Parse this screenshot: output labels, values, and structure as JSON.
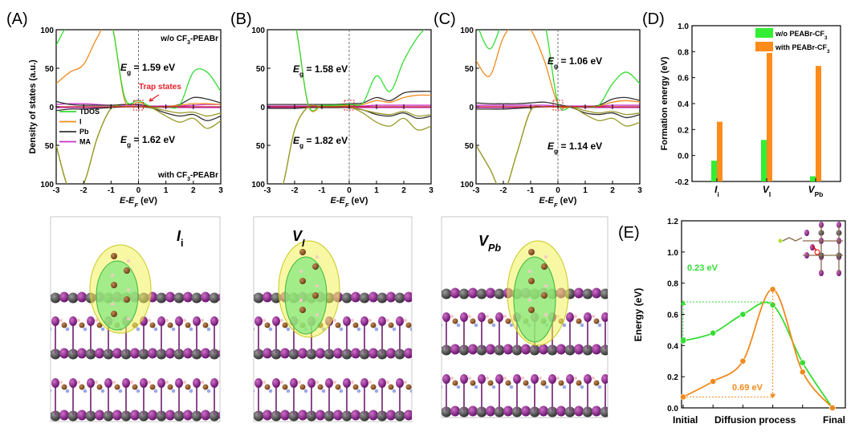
{
  "chart_data": [
    {
      "panel": "(A)",
      "type": "line",
      "title": "",
      "xlabel": {
        "main": "E-E",
        "sub": "F",
        "unit": " (eV)"
      },
      "ylabel": "Density of states (a.u.)",
      "xlim": [
        -3,
        3
      ],
      "ylim": [
        -100,
        100
      ],
      "xticks": [
        "-3",
        "-2",
        "-1",
        "0",
        "1",
        "2",
        "3"
      ],
      "yticks": [
        "100",
        "50",
        "0",
        "50",
        "100"
      ],
      "top_label": {
        "pre": "w/o CF",
        "sub": "3",
        "post": "-PEABr"
      },
      "bottom_label": {
        "pre": "with CF",
        "sub": "3",
        "post": "-PEABr"
      },
      "eg_upper": {
        "sym": "E",
        "sub": "g",
        "value": " = 1.59 eV"
      },
      "eg_lower": {
        "sym": "E",
        "sub": "g",
        "value": " = 1.62 eV"
      },
      "annotation": "Trap states",
      "legend": [
        "TDOS",
        "I",
        "Pb",
        "MA"
      ],
      "x": [
        -3,
        -2.5,
        -2,
        -1.5,
        -1,
        -0.5,
        0,
        0.5,
        1,
        1.5,
        2,
        2.5,
        3
      ],
      "upper": {
        "TDOS": [
          80,
          110,
          110,
          110,
          110,
          12,
          8,
          0,
          0,
          2,
          45,
          45,
          20
        ],
        "I": [
          30,
          45,
          55,
          90,
          110,
          8,
          6,
          0,
          0,
          2,
          4,
          4,
          3
        ],
        "Pb": [
          7,
          3,
          2,
          2,
          2,
          3,
          3,
          0,
          0,
          3,
          12,
          10,
          5
        ],
        "MA": [
          3,
          4,
          4,
          3,
          2,
          2,
          2,
          1,
          1,
          1,
          2,
          3,
          3
        ]
      },
      "lower": {
        "TDOS": [
          50,
          110,
          100,
          40,
          2,
          0,
          0,
          2,
          12,
          20,
          15,
          28,
          18
        ],
        "I": [
          50,
          110,
          100,
          40,
          2,
          0,
          0,
          1,
          5,
          8,
          7,
          12,
          8
        ],
        "Pb": [
          5,
          3,
          3,
          2,
          1,
          0,
          0,
          2,
          8,
          12,
          10,
          18,
          12
        ],
        "MA": [
          1,
          1,
          1,
          1,
          0,
          0,
          0,
          0,
          1,
          1,
          1,
          1,
          1
        ]
      }
    },
    {
      "panel": "(B)",
      "type": "line",
      "xlabel": {
        "main": "E-E",
        "sub": "F",
        "unit": " (eV)"
      },
      "xlim": [
        -3,
        3
      ],
      "ylim": [
        -100,
        100
      ],
      "xticks": [
        "-3",
        "-2",
        "-1",
        "0",
        "1",
        "2",
        "3"
      ],
      "yticks": [
        "100",
        "50",
        "0",
        "50",
        "100"
      ],
      "eg_upper": {
        "sym": "E",
        "sub": "g",
        "value": " = 1.58 eV"
      },
      "eg_lower": {
        "sym": "E",
        "sub": "g",
        "value": " = 1.82 eV"
      },
      "x": [
        -3,
        -2.5,
        -2,
        -1.5,
        -1,
        -0.5,
        0,
        0.5,
        1,
        1.5,
        2,
        2.5,
        3
      ],
      "upper": {
        "TDOS": [
          110,
          110,
          110,
          3,
          2,
          2,
          3,
          5,
          40,
          20,
          60,
          90,
          110
        ],
        "I": [
          110,
          110,
          110,
          2,
          1,
          1,
          2,
          3,
          8,
          6,
          12,
          15,
          15
        ],
        "Pb": [
          3,
          3,
          3,
          3,
          3,
          3,
          4,
          5,
          12,
          8,
          18,
          20,
          20
        ],
        "MA": [
          1,
          1,
          1,
          1,
          1,
          1,
          1,
          1,
          2,
          2,
          2,
          2,
          2
        ]
      },
      "lower": {
        "TDOS": [
          110,
          110,
          30,
          0,
          0,
          0,
          0,
          8,
          20,
          25,
          15,
          30,
          25
        ],
        "I": [
          110,
          110,
          30,
          0,
          0,
          0,
          0,
          4,
          8,
          10,
          6,
          12,
          10
        ],
        "Pb": [
          2,
          2,
          2,
          1,
          1,
          1,
          1,
          4,
          10,
          12,
          8,
          15,
          12
        ],
        "MA": [
          1,
          1,
          1,
          1,
          1,
          1,
          1,
          1,
          1,
          1,
          1,
          1,
          1
        ]
      }
    },
    {
      "panel": "(C)",
      "type": "line",
      "xlabel": {
        "main": "E-E",
        "sub": "F",
        "unit": " (eV)"
      },
      "xlim": [
        -3,
        3
      ],
      "ylim": [
        -100,
        100
      ],
      "xticks": [
        "-3",
        "-2",
        "-1",
        "0",
        "1",
        "2",
        "3"
      ],
      "yticks": [
        "100",
        "50",
        "0",
        "50",
        "100"
      ],
      "eg_upper": {
        "sym": "E",
        "sub": "g",
        "value": " = 1.06 eV"
      },
      "eg_lower": {
        "sym": "E",
        "sub": "g",
        "value": " = 1.14 eV"
      },
      "x": [
        -3,
        -2.5,
        -2,
        -1.5,
        -1,
        -0.5,
        0,
        0.5,
        1,
        1.5,
        2,
        2.5,
        3
      ],
      "upper": {
        "TDOS": [
          110,
          75,
          110,
          110,
          110,
          110,
          5,
          0,
          0,
          2,
          30,
          45,
          30
        ],
        "I": [
          60,
          40,
          90,
          110,
          100,
          60,
          4,
          0,
          0,
          1,
          6,
          8,
          6
        ],
        "Pb": [
          5,
          4,
          4,
          4,
          5,
          6,
          3,
          0,
          0,
          2,
          10,
          12,
          8
        ],
        "MA": [
          2,
          2,
          2,
          2,
          2,
          2,
          1,
          1,
          1,
          1,
          2,
          2,
          2
        ]
      },
      "lower": {
        "TDOS": [
          50,
          80,
          110,
          60,
          5,
          0,
          0,
          0,
          10,
          18,
          15,
          25,
          20
        ],
        "I": [
          50,
          80,
          110,
          60,
          5,
          0,
          0,
          0,
          5,
          8,
          6,
          10,
          8
        ],
        "Pb": [
          3,
          3,
          3,
          2,
          1,
          0,
          0,
          1,
          8,
          10,
          8,
          14,
          10
        ],
        "MA": [
          1,
          1,
          1,
          1,
          0,
          0,
          0,
          0,
          1,
          1,
          1,
          1,
          1
        ]
      }
    },
    {
      "panel": "(D)",
      "type": "bar",
      "ylabel": "Formation energy (eV)",
      "ylim": [
        -0.2,
        1.0
      ],
      "yticks": [
        "-0.2",
        "0.0",
        "0.2",
        "0.4",
        "0.6",
        "0.8",
        "1.0"
      ],
      "categories": [
        {
          "main": "I",
          "sub": "i"
        },
        {
          "main": "V",
          "sub": "I"
        },
        {
          "main": "V",
          "sub": "Pb"
        }
      ],
      "series": [
        {
          "name": {
            "pre": "w/o PEABr-CF",
            "sub": "3"
          },
          "color": "#33ee33",
          "values": [
            -0.04,
            0.12,
            -0.16
          ]
        },
        {
          "name": {
            "pre": "with PEABr-CF",
            "sub": "3"
          },
          "color": "#ff8c1a",
          "values": [
            0.26,
            0.79,
            0.69
          ]
        }
      ],
      "legend": "top-right"
    },
    {
      "panel": "(E)",
      "type": "line",
      "ylabel": "Energy (eV)",
      "ylim": [
        0,
        1.2
      ],
      "yticks": [
        "0.0",
        "0.2",
        "0.4",
        "0.6",
        "0.8",
        "1.0",
        "1.2"
      ],
      "x": [
        0,
        1,
        2,
        3,
        4,
        5
      ],
      "xlabels": [
        "Initial",
        "Diffusion process",
        "Final"
      ],
      "series": [
        {
          "name": "w/o",
          "color": "#33dd33",
          "values": [
            0.43,
            0.48,
            0.6,
            0.66,
            0.29,
            0.0
          ]
        },
        {
          "name": "with",
          "color": "#f08a1c",
          "values": [
            0.07,
            0.17,
            0.3,
            0.76,
            0.23,
            0.0
          ]
        }
      ],
      "annotations": [
        "0.23 eV",
        "0.69 eV"
      ]
    }
  ],
  "dos_colors": {
    "TDOS": "#33dd33",
    "I": "#f08a1c",
    "Pb": "#333333",
    "MA": "#cc33cc"
  },
  "trap_color": "#e8202a",
  "structures": [
    {
      "main": "I",
      "sub": "i"
    },
    {
      "main": "V",
      "sub": "I"
    },
    {
      "main": "V",
      "sub": "Pb"
    }
  ]
}
